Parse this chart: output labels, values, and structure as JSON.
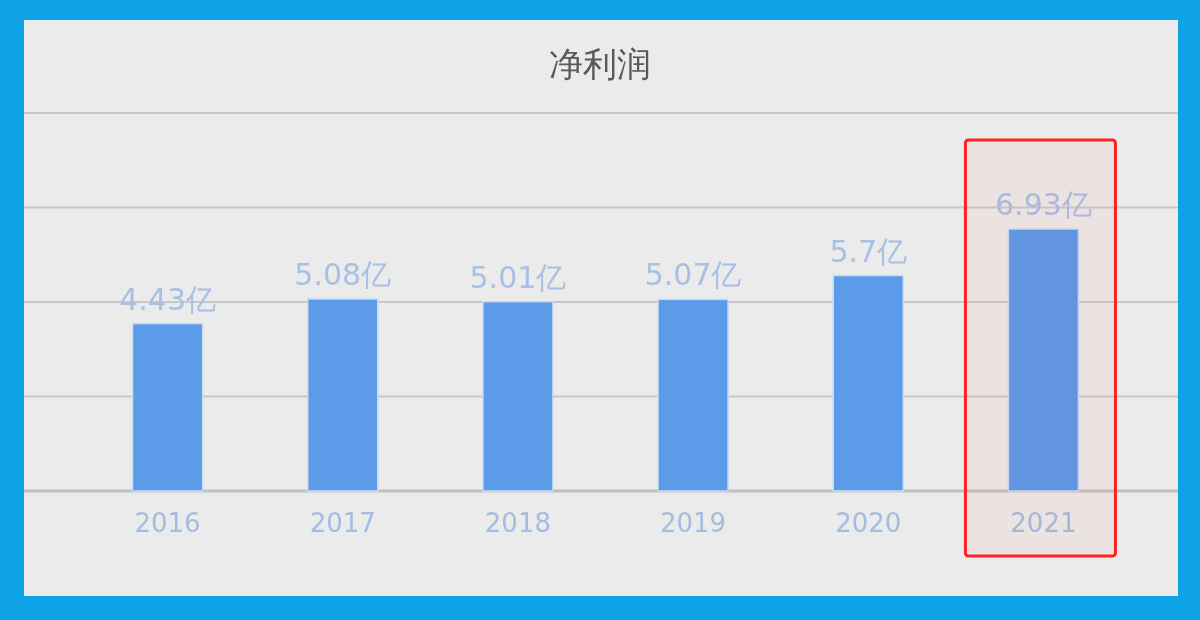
{
  "chart_data": {
    "type": "bar",
    "title": "净利润",
    "categories": [
      "2016",
      "2017",
      "2018",
      "2019",
      "2020",
      "2021"
    ],
    "values": [
      4.43,
      5.08,
      5.01,
      5.07,
      5.7,
      6.93
    ],
    "value_labels": [
      "4.43亿",
      "5.08亿",
      "5.01亿",
      "5.07亿",
      "5.7亿",
      "6.93亿"
    ],
    "color": "#5b9be8",
    "ylim": [
      0,
      10
    ],
    "yticks": [
      {
        "value": 0,
        "label": null
      },
      {
        "value": 2.5,
        "label": null
      },
      {
        "value": 5,
        "label": null
      },
      {
        "value": 7.5,
        "label": null
      },
      {
        "value": 10,
        "label": null
      }
    ],
    "grid": "y",
    "tick_labels": "x",
    "bands": [
      {
        "axis": "x",
        "from": "2021",
        "to": "2021",
        "color": "#ff2020"
      }
    ]
  }
}
